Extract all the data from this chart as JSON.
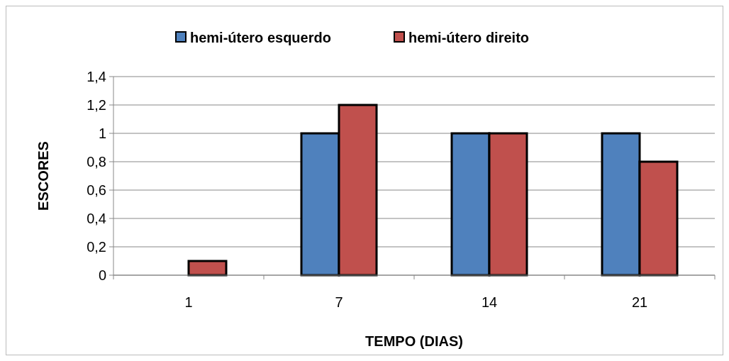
{
  "chart_data": {
    "type": "bar",
    "xlabel": "TEMPO (DIAS)",
    "ylabel": "ESCORES",
    "categories": [
      "1",
      "7",
      "14",
      "21"
    ],
    "series": [
      {
        "name": "hemi-útero esquerdo",
        "color": "#4f81bd",
        "values": [
          0,
          1,
          1,
          1
        ]
      },
      {
        "name": "hemi-útero direito",
        "color": "#c0504d",
        "values": [
          0.1,
          1.2,
          1,
          0.8
        ]
      }
    ],
    "ylim": [
      0,
      1.4
    ],
    "yticks": [
      0,
      {
        "value": 0.2,
        "label": "0,2"
      },
      {
        "value": 0.4,
        "label": "0,4"
      },
      {
        "value": 0.6,
        "label": "0,6"
      },
      {
        "value": 0.8,
        "label": "0,8"
      },
      1,
      {
        "value": 1.2,
        "label": "1,2"
      },
      {
        "value": 1.4,
        "label": "1,4"
      }
    ],
    "grid": "y",
    "legend": "top"
  }
}
